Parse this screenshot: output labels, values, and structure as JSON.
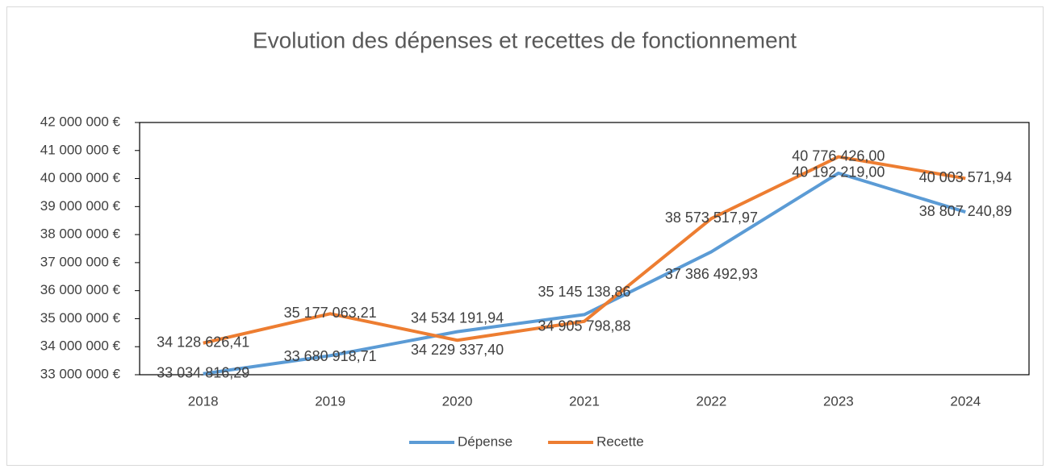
{
  "chart_data": {
    "type": "line",
    "title": "Evolution des dépenses et recettes de fonctionnement",
    "categories": [
      "2018",
      "2019",
      "2020",
      "2021",
      "2022",
      "2023",
      "2024"
    ],
    "series": [
      {
        "name": "Dépense",
        "color": "#5b9bd5",
        "values": [
          33034816.29,
          33680918.71,
          34534191.94,
          35145138.86,
          37386492.93,
          40192219.0,
          38807240.89
        ],
        "value_labels": [
          "33 034 816,29",
          "33 680 918,71",
          "34 534 191,94",
          "35 145 138,86",
          "37 386 492,93",
          "40 192 219,00",
          "38 807 240,89"
        ]
      },
      {
        "name": "Recette",
        "color": "#ed7d31",
        "values": [
          34128626.41,
          35177063.21,
          34229337.4,
          34905798.88,
          38573517.97,
          40776426.0,
          40003571.94
        ],
        "value_labels": [
          "34 128 626,41",
          "35 177 063,21",
          "34 229 337,40",
          "34 905 798,88",
          "38 573 517,97",
          "40 776 426,00",
          "40 003 571,94"
        ]
      }
    ],
    "ylim": [
      33000000,
      42000000
    ],
    "yticks": [
      {
        "value": 33000000,
        "label": "33 000 000 €"
      },
      {
        "value": 34000000,
        "label": "34 000 000 €"
      },
      {
        "value": 35000000,
        "label": "35 000 000 €"
      },
      {
        "value": 36000000,
        "label": "36 000 000 €"
      },
      {
        "value": 37000000,
        "label": "37 000 000 €"
      },
      {
        "value": 38000000,
        "label": "38 000 000 €"
      },
      {
        "value": 39000000,
        "label": "39 000 000 €"
      },
      {
        "value": 40000000,
        "label": "40 000 000 €"
      },
      {
        "value": 41000000,
        "label": "41 000 000 €"
      },
      {
        "value": 42000000,
        "label": "42 000 000 €"
      }
    ],
    "grid": false,
    "legend": "bottom"
  }
}
